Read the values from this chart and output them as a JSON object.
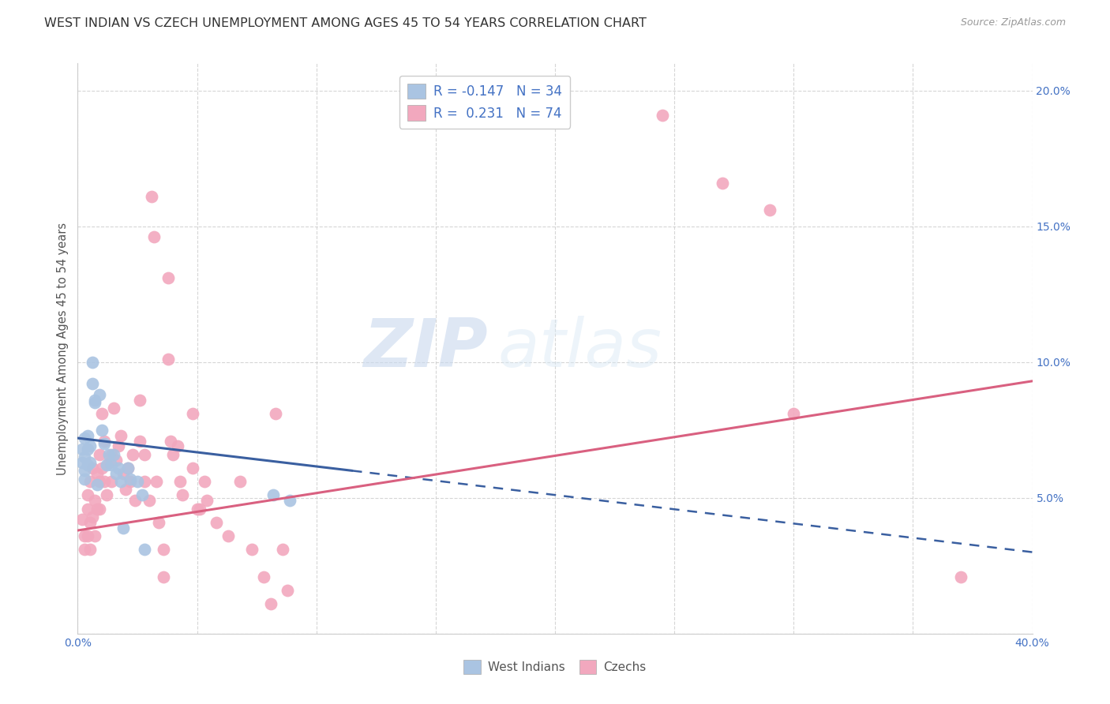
{
  "title": "WEST INDIAN VS CZECH UNEMPLOYMENT AMONG AGES 45 TO 54 YEARS CORRELATION CHART",
  "source": "Source: ZipAtlas.com",
  "ylabel": "Unemployment Among Ages 45 to 54 years",
  "xlim": [
    0.0,
    0.4
  ],
  "ylim": [
    0.0,
    0.21
  ],
  "x_ticks": [
    0.0,
    0.05,
    0.1,
    0.15,
    0.2,
    0.25,
    0.3,
    0.35,
    0.4
  ],
  "x_tick_labels": [
    "0.0%",
    "",
    "",
    "",
    "",
    "",
    "",
    "",
    "40.0%"
  ],
  "y_ticks": [
    0.0,
    0.05,
    0.1,
    0.15,
    0.2
  ],
  "y_tick_labels": [
    "",
    "5.0%",
    "10.0%",
    "15.0%",
    "20.0%"
  ],
  "legend_r_west": "-0.147",
  "legend_n_west": "34",
  "legend_r_czech": "0.231",
  "legend_n_czech": "74",
  "west_indian_color": "#aac4e2",
  "czech_color": "#f2a8be",
  "west_indian_line_color": "#3a5fa0",
  "czech_line_color": "#d96080",
  "west_indian_scatter": [
    [
      0.002,
      0.068
    ],
    [
      0.002,
      0.063
    ],
    [
      0.003,
      0.072
    ],
    [
      0.003,
      0.065
    ],
    [
      0.003,
      0.06
    ],
    [
      0.003,
      0.057
    ],
    [
      0.004,
      0.073
    ],
    [
      0.004,
      0.068
    ],
    [
      0.004,
      0.062
    ],
    [
      0.005,
      0.069
    ],
    [
      0.005,
      0.063
    ],
    [
      0.006,
      0.1
    ],
    [
      0.006,
      0.092
    ],
    [
      0.007,
      0.085
    ],
    [
      0.007,
      0.086
    ],
    [
      0.008,
      0.055
    ],
    [
      0.009,
      0.088
    ],
    [
      0.01,
      0.075
    ],
    [
      0.011,
      0.07
    ],
    [
      0.012,
      0.062
    ],
    [
      0.013,
      0.066
    ],
    [
      0.014,
      0.062
    ],
    [
      0.015,
      0.066
    ],
    [
      0.016,
      0.059
    ],
    [
      0.017,
      0.061
    ],
    [
      0.018,
      0.056
    ],
    [
      0.019,
      0.039
    ],
    [
      0.021,
      0.061
    ],
    [
      0.022,
      0.057
    ],
    [
      0.025,
      0.056
    ],
    [
      0.027,
      0.051
    ],
    [
      0.028,
      0.031
    ],
    [
      0.082,
      0.051
    ],
    [
      0.089,
      0.049
    ]
  ],
  "czech_scatter": [
    [
      0.002,
      0.042
    ],
    [
      0.003,
      0.036
    ],
    [
      0.003,
      0.031
    ],
    [
      0.004,
      0.051
    ],
    [
      0.004,
      0.046
    ],
    [
      0.004,
      0.036
    ],
    [
      0.005,
      0.056
    ],
    [
      0.005,
      0.041
    ],
    [
      0.005,
      0.031
    ],
    [
      0.006,
      0.061
    ],
    [
      0.006,
      0.043
    ],
    [
      0.007,
      0.049
    ],
    [
      0.007,
      0.036
    ],
    [
      0.008,
      0.059
    ],
    [
      0.008,
      0.046
    ],
    [
      0.009,
      0.066
    ],
    [
      0.009,
      0.056
    ],
    [
      0.009,
      0.046
    ],
    [
      0.01,
      0.081
    ],
    [
      0.01,
      0.061
    ],
    [
      0.011,
      0.071
    ],
    [
      0.011,
      0.056
    ],
    [
      0.012,
      0.051
    ],
    [
      0.013,
      0.063
    ],
    [
      0.014,
      0.066
    ],
    [
      0.014,
      0.056
    ],
    [
      0.015,
      0.083
    ],
    [
      0.016,
      0.064
    ],
    [
      0.017,
      0.069
    ],
    [
      0.018,
      0.073
    ],
    [
      0.019,
      0.059
    ],
    [
      0.02,
      0.053
    ],
    [
      0.021,
      0.061
    ],
    [
      0.022,
      0.056
    ],
    [
      0.023,
      0.066
    ],
    [
      0.024,
      0.049
    ],
    [
      0.026,
      0.086
    ],
    [
      0.026,
      0.071
    ],
    [
      0.028,
      0.066
    ],
    [
      0.028,
      0.056
    ],
    [
      0.03,
      0.049
    ],
    [
      0.031,
      0.161
    ],
    [
      0.032,
      0.146
    ],
    [
      0.033,
      0.056
    ],
    [
      0.034,
      0.041
    ],
    [
      0.036,
      0.031
    ],
    [
      0.036,
      0.021
    ],
    [
      0.038,
      0.131
    ],
    [
      0.038,
      0.101
    ],
    [
      0.039,
      0.071
    ],
    [
      0.04,
      0.066
    ],
    [
      0.042,
      0.069
    ],
    [
      0.043,
      0.056
    ],
    [
      0.044,
      0.051
    ],
    [
      0.048,
      0.081
    ],
    [
      0.048,
      0.061
    ],
    [
      0.05,
      0.046
    ],
    [
      0.051,
      0.046
    ],
    [
      0.053,
      0.056
    ],
    [
      0.054,
      0.049
    ],
    [
      0.058,
      0.041
    ],
    [
      0.063,
      0.036
    ],
    [
      0.068,
      0.056
    ],
    [
      0.073,
      0.031
    ],
    [
      0.078,
      0.021
    ],
    [
      0.081,
      0.011
    ],
    [
      0.083,
      0.081
    ],
    [
      0.086,
      0.031
    ],
    [
      0.088,
      0.016
    ],
    [
      0.245,
      0.191
    ],
    [
      0.27,
      0.166
    ],
    [
      0.29,
      0.156
    ],
    [
      0.3,
      0.081
    ],
    [
      0.37,
      0.021
    ]
  ],
  "west_solid_line": {
    "x0": 0.0,
    "y0": 0.072,
    "x1": 0.115,
    "y1": 0.06
  },
  "west_dashed_line": {
    "x0": 0.115,
    "y0": 0.06,
    "x1": 0.4,
    "y1": 0.03
  },
  "czech_solid_line": {
    "x0": 0.0,
    "y0": 0.038,
    "x1": 0.4,
    "y1": 0.093
  },
  "background_color": "#ffffff",
  "grid_color": "#cccccc",
  "watermark_zip": "ZIP",
  "watermark_atlas": "atlas",
  "title_fontsize": 11.5,
  "axis_label_fontsize": 10.5,
  "tick_fontsize": 10,
  "source_fontsize": 9,
  "legend_fontsize": 12
}
